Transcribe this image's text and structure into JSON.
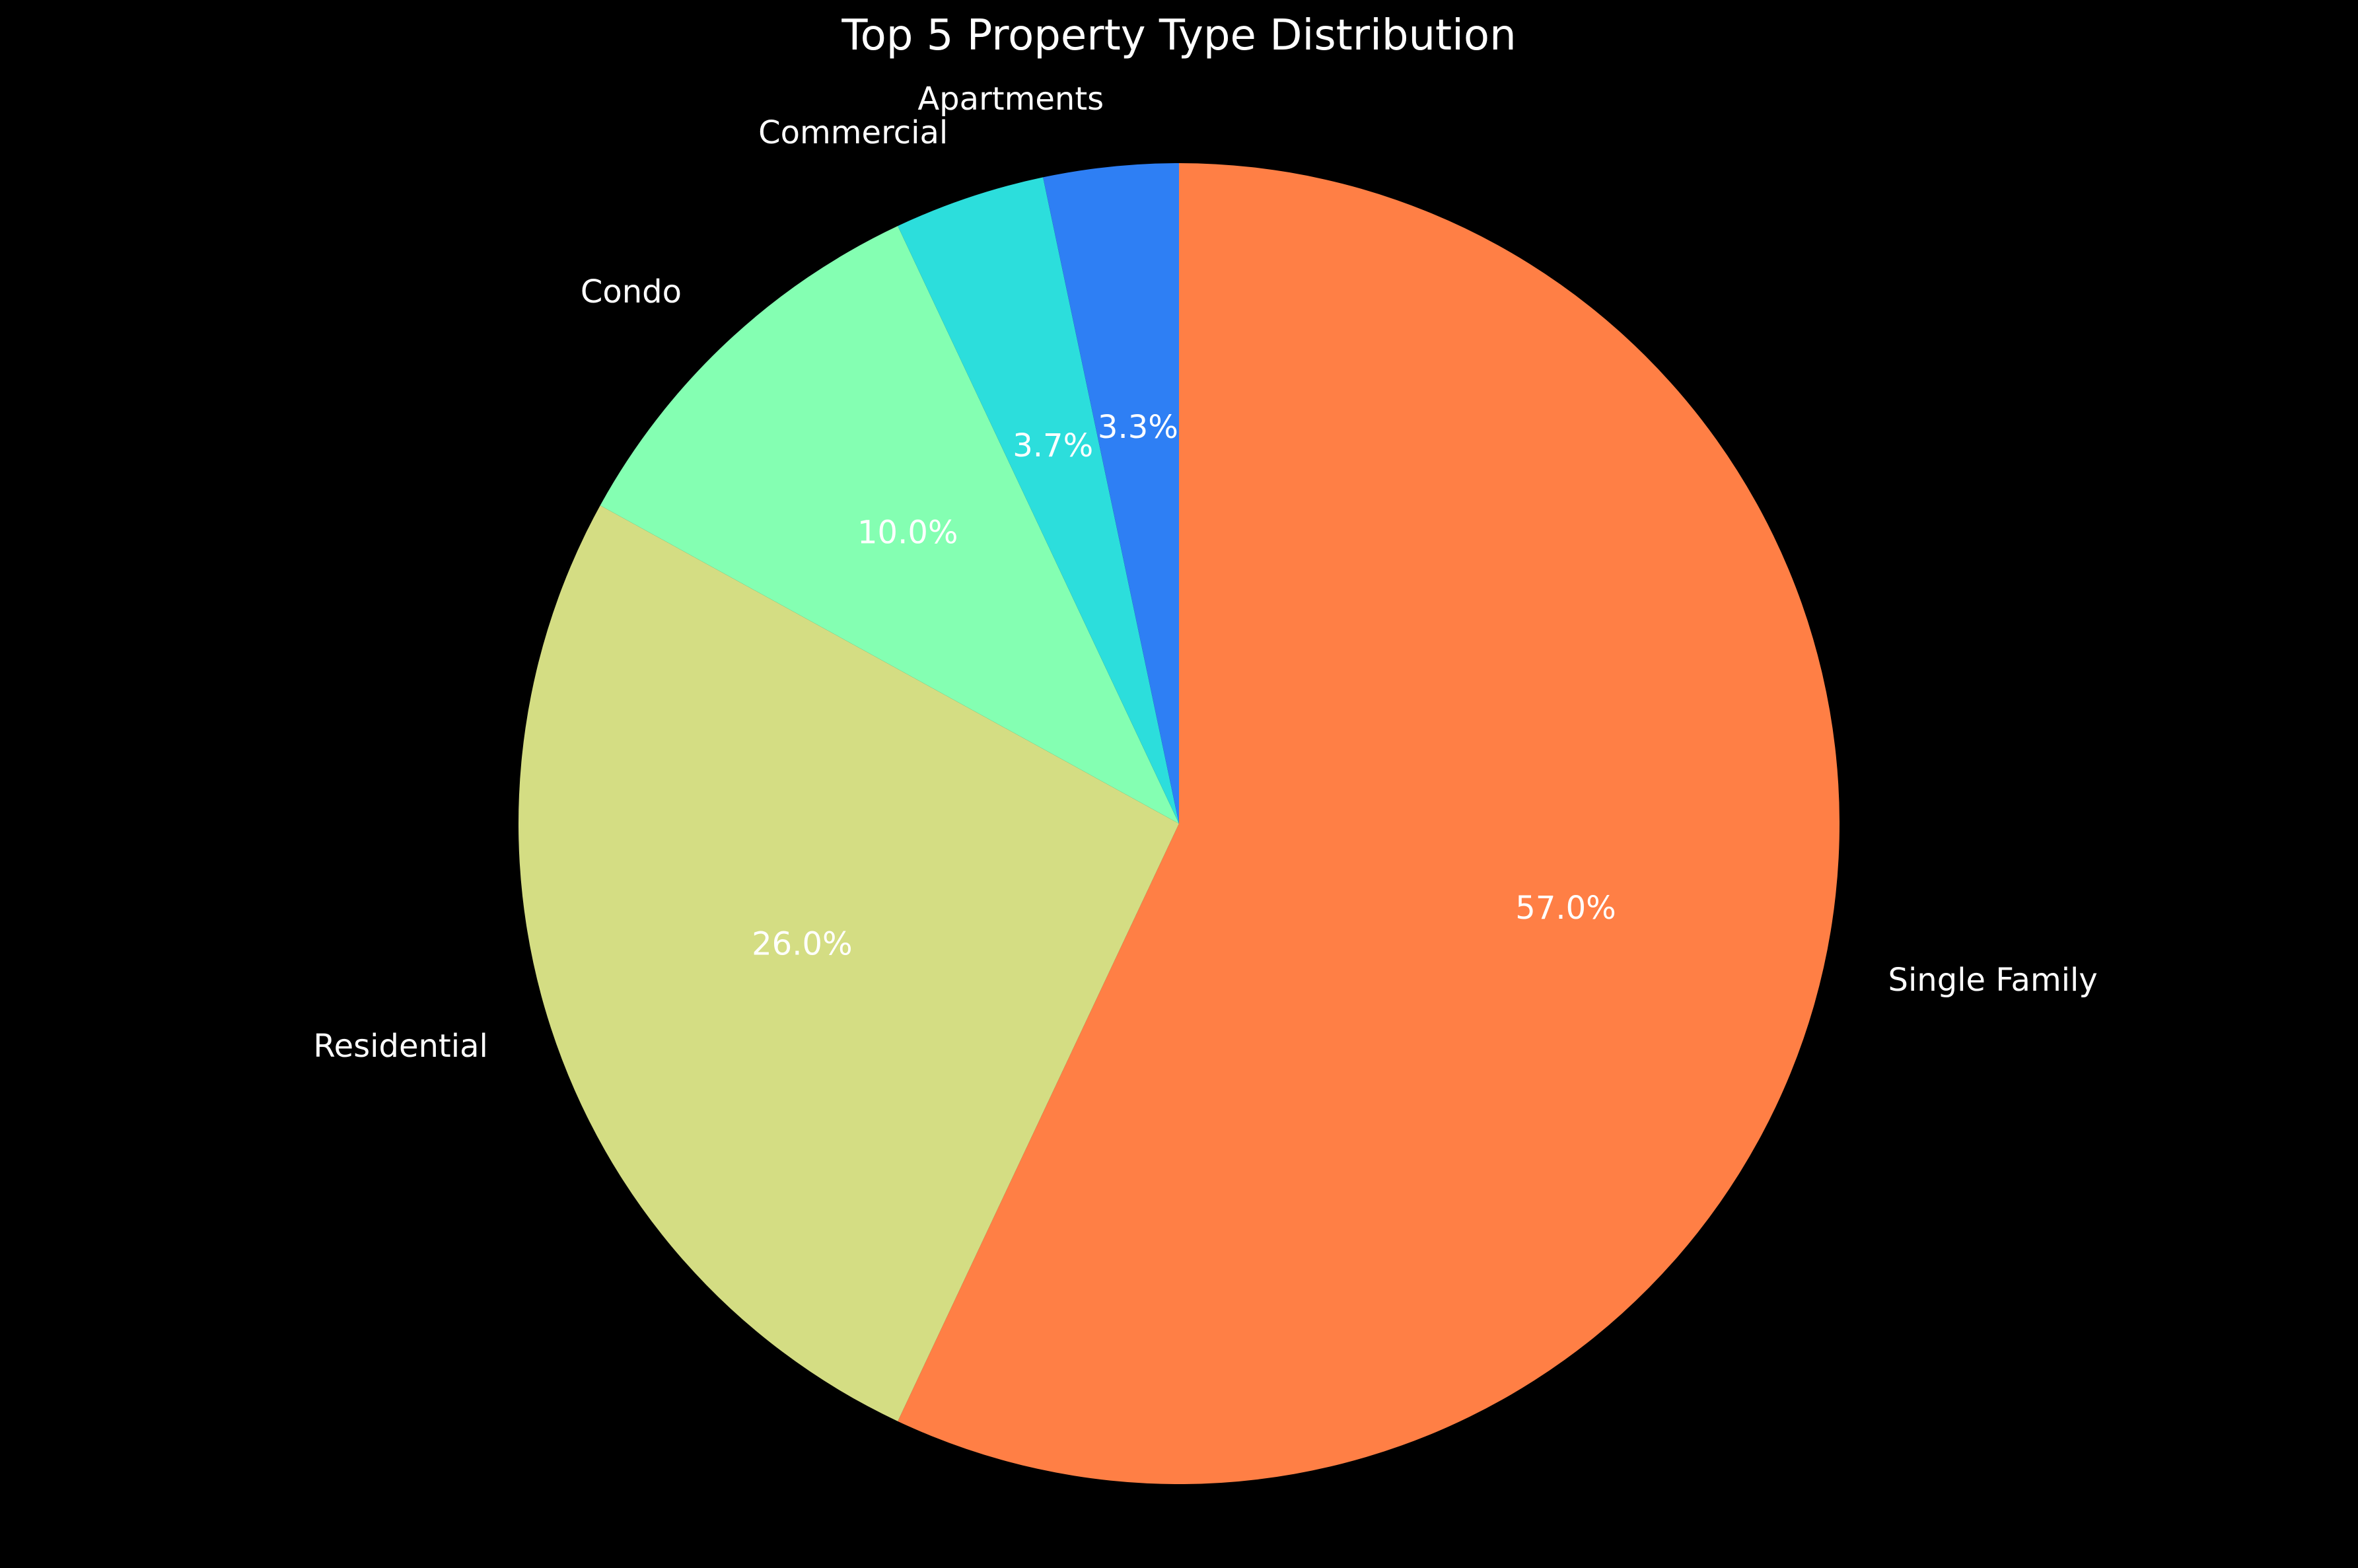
{
  "chart_data": {
    "type": "pie",
    "title": "Top 5 Property Type Distribution",
    "start_angle_deg": 90,
    "direction": "clockwise",
    "slices": [
      {
        "label": "Single Family",
        "value": 57.0,
        "pct_label": "57.0%",
        "color": "#ff7f45"
      },
      {
        "label": "Residential",
        "value": 26.0,
        "pct_label": "26.0%",
        "color": "#d4dd83"
      },
      {
        "label": "Condo",
        "value": 10.0,
        "pct_label": "10.0%",
        "color": "#84ffb2"
      },
      {
        "label": "Commercial",
        "value": 3.7,
        "pct_label": "3.7%",
        "color": "#2cdedc"
      },
      {
        "label": "Apartments",
        "value": 3.3,
        "pct_label": "3.3%",
        "color": "#2e7ff4"
      }
    ],
    "background": "#000000"
  }
}
